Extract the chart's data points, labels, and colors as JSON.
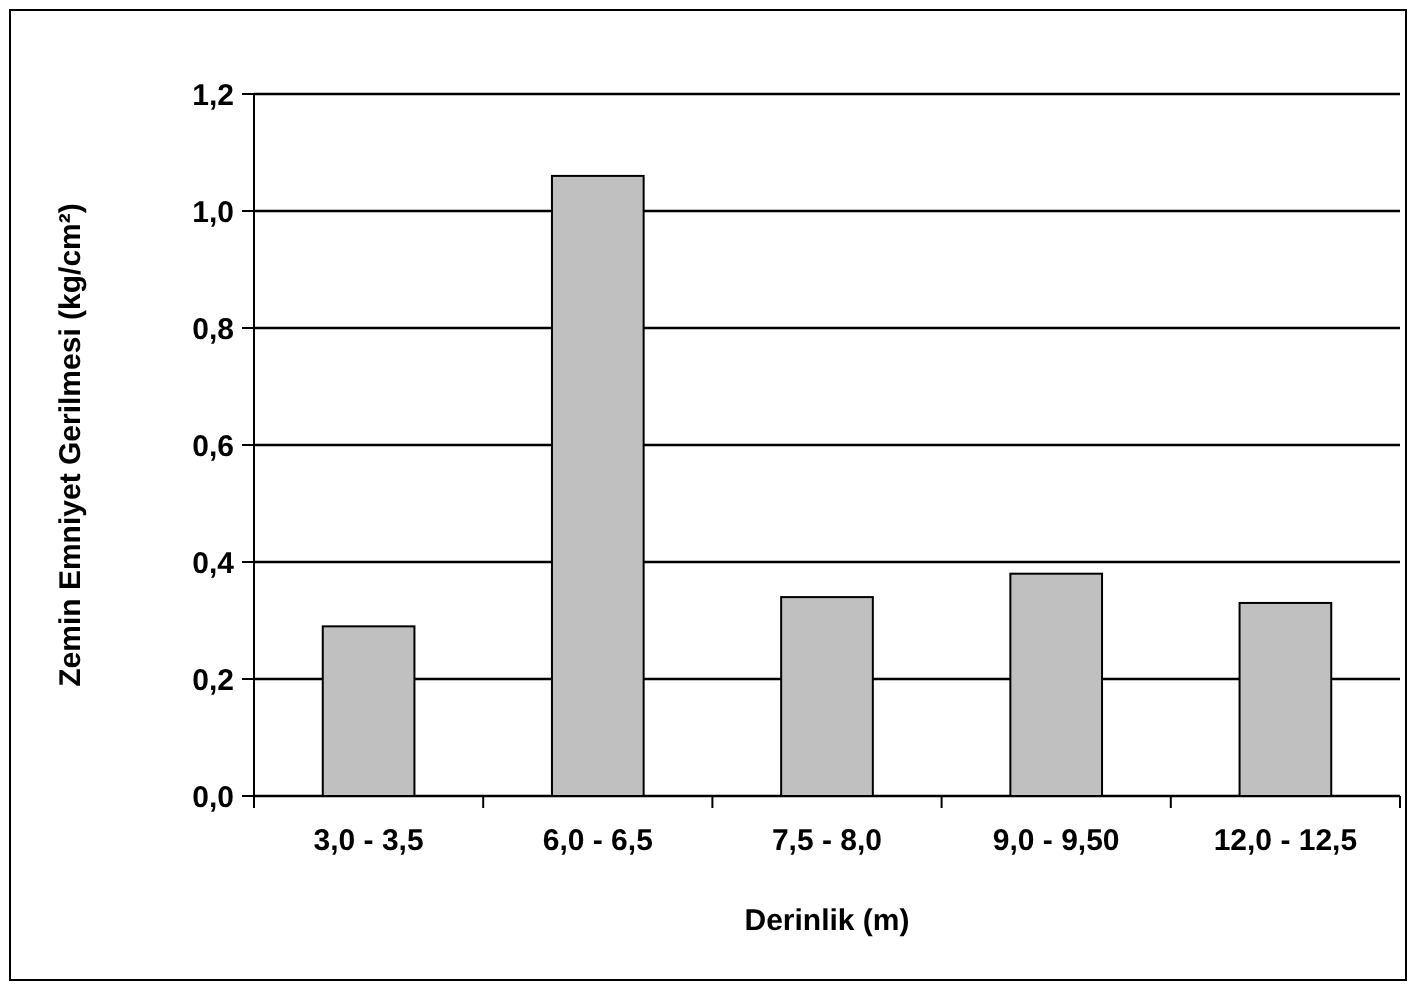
{
  "chart_data": {
    "type": "bar",
    "xlabel": "Derinlik (m)",
    "ylabel": "Zemin Emniyet Gerilmesi (kg/cm²)",
    "categories": [
      "3,0 - 3,5",
      "6,0 - 6,5",
      "7,5 - 8,0",
      "9,0 - 9,50",
      "12,0 - 12,5"
    ],
    "values": [
      0.29,
      1.06,
      0.34,
      0.38,
      0.33
    ],
    "color": "#c0c0c0",
    "ylim": [
      0,
      1.2
    ],
    "yticks": [
      {
        "value": 0,
        "label": "0,0"
      },
      {
        "value": 0.2,
        "label": "0,2"
      },
      {
        "value": 0.4,
        "label": "0,4"
      },
      {
        "value": 0.6,
        "label": "0,6"
      },
      {
        "value": 0.8,
        "label": "0,8"
      },
      {
        "value": 1.0,
        "label": "1,0"
      },
      {
        "value": 1.2,
        "label": "1,2"
      }
    ],
    "grid": "y"
  }
}
